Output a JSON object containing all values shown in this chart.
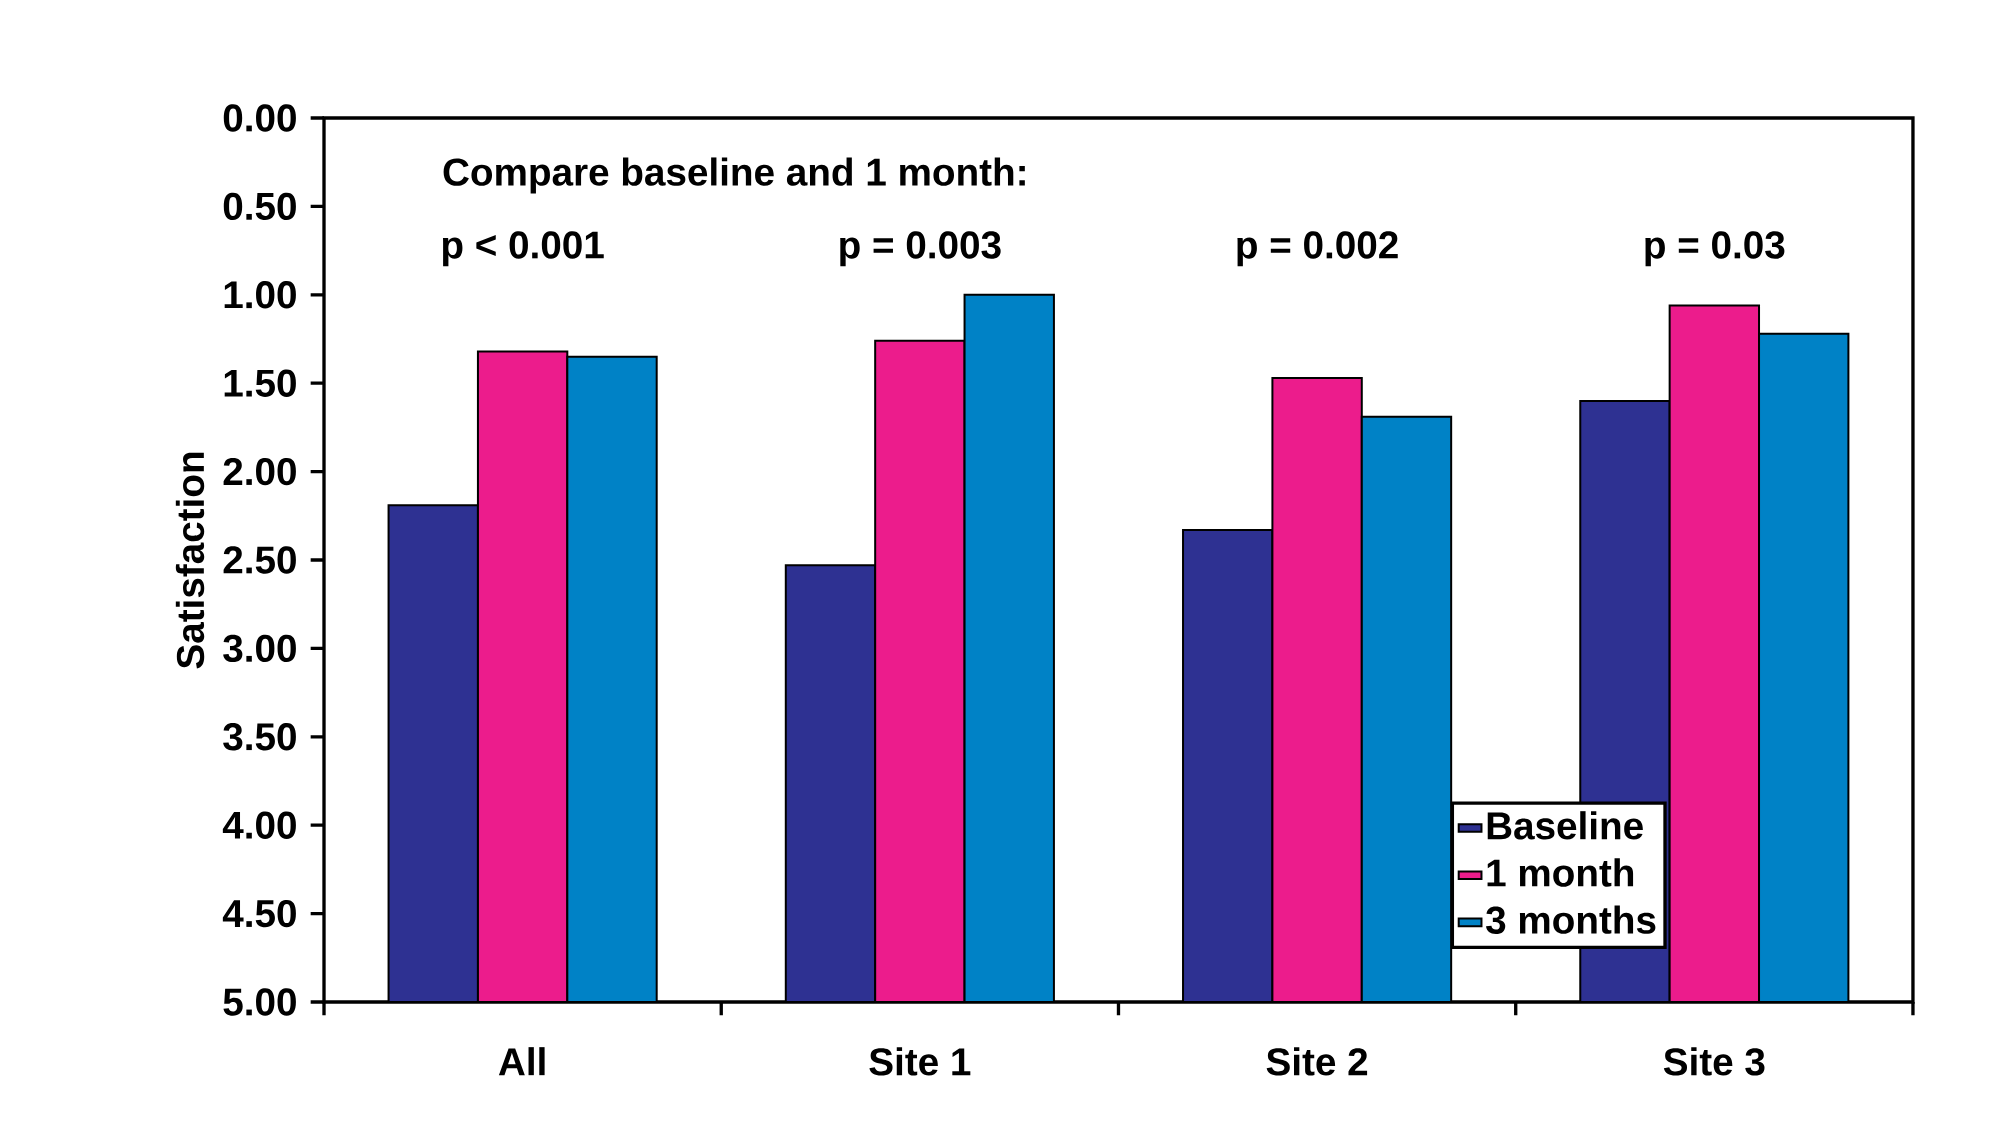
{
  "chart_data": {
    "type": "bar",
    "ylabel": "Satisfaction",
    "categories": [
      "All",
      "Site 1",
      "Site 2",
      "Site 3"
    ],
    "series": [
      {
        "name": "Baseline",
        "color": "#2e3192",
        "base": [
          5,
          5,
          5,
          5
        ],
        "values": [
          -2.81,
          -2.47,
          -2.67,
          -3.4
        ]
      },
      {
        "name": "1 month",
        "color": "#ec1c8c",
        "base": [
          5,
          5,
          5,
          5
        ],
        "values": [
          -3.68,
          -3.74,
          -3.53,
          -3.94
        ]
      },
      {
        "name": "3 months",
        "color": "#0082c6",
        "base": [
          5,
          5,
          5,
          5
        ],
        "values": [
          -3.65,
          -4.0,
          -3.31,
          -3.78
        ]
      }
    ],
    "ylim": [
      5,
      0
    ],
    "yticks": [
      {
        "value": 0,
        "label": "0.00"
      },
      {
        "value": 0.5,
        "label": "0.50"
      },
      {
        "value": 1,
        "label": "1.00"
      },
      {
        "value": 1.5,
        "label": "1.50"
      },
      {
        "value": 2,
        "label": "2.00"
      },
      {
        "value": 2.5,
        "label": "2.50"
      },
      {
        "value": 3,
        "label": "3.00"
      },
      {
        "value": 3.5,
        "label": "3.50"
      },
      {
        "value": 4,
        "label": "4.00"
      },
      {
        "value": 4.5,
        "label": "4.50"
      },
      {
        "value": 5,
        "label": "5.00"
      }
    ],
    "annotations": [
      "Compare baseline and 1 month:",
      "p < 0.001",
      "p = 0.003",
      "p = 0.002",
      "p = 0.03"
    ],
    "legend": "bottom right",
    "grid": false
  }
}
